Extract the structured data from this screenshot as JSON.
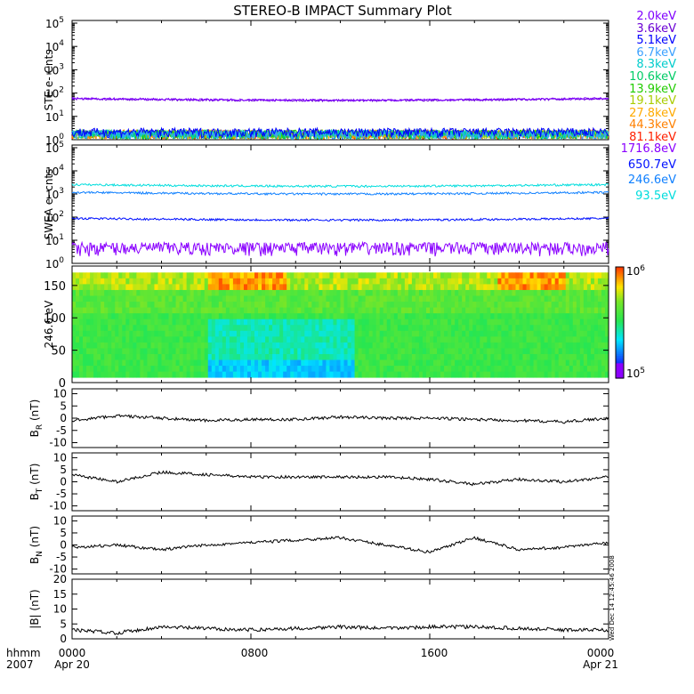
{
  "title": "STEREO-B IMPACT Summary Plot",
  "footer": {
    "left_line1": "hhmm",
    "left_line2": "2007",
    "tick_labels": [
      "0000",
      "0800",
      "1600",
      "0000"
    ],
    "date_start": "Apr 20",
    "date_end": "Apr 21",
    "timestamp": "Wed Dec 14 12:45:46 2008"
  },
  "colors": {
    "axis": "#000000",
    "ste_2": "#8000ff",
    "ste_3_6": "#6a00d4",
    "ste_5_1": "#0000ff",
    "ste_6_7": "#3aa0ff",
    "ste_8_3": "#00cccc",
    "ste_10_6": "#00cc66",
    "ste_13_9": "#22cc00",
    "ste_19_1": "#aacc00",
    "ste_27_8": "#ffaa00",
    "ste_44_3": "#ff8000",
    "ste_81_1": "#ff2000",
    "swea_1716": "#8a00ff",
    "swea_650": "#0010ff",
    "swea_246": "#1080ff",
    "swea_93": "#00dddd"
  },
  "chart_data": [
    {
      "type": "line",
      "panel": "STE",
      "ylabel": "STE e- Cnts",
      "yscale": "log",
      "ylim": [
        1,
        100000
      ],
      "ytick_labels": [
        "10^0",
        "10^1",
        "10^2",
        "10^3",
        "10^4",
        "10^5"
      ],
      "series": [
        {
          "name": "2.0keV",
          "color": "#8000ff",
          "level": 60
        },
        {
          "name": "3.6keV",
          "color": "#6a00d4",
          "level": 58
        },
        {
          "name": "5.1keV",
          "color": "#0000ff",
          "level": 1.2
        },
        {
          "name": "6.7keV",
          "color": "#3aa0ff",
          "level": 1
        },
        {
          "name": "8.3keV",
          "color": "#00cccc",
          "level": 1
        },
        {
          "name": "10.6keV",
          "color": "#00cc66",
          "level": 1
        },
        {
          "name": "13.9keV",
          "color": "#22cc00",
          "level": 1
        },
        {
          "name": "19.1keV",
          "color": "#aacc00",
          "level": 1
        },
        {
          "name": "27.8keV",
          "color": "#ffaa00",
          "level": 1
        },
        {
          "name": "44.3keV",
          "color": "#ff8000",
          "level": 1
        },
        {
          "name": "81.1keV",
          "color": "#ff2000",
          "level": 1
        }
      ]
    },
    {
      "type": "line",
      "panel": "SWEA",
      "ylabel": "SWEA e- cnts",
      "yscale": "log",
      "ylim": [
        1,
        100000
      ],
      "ytick_labels": [
        "10^0",
        "10^1",
        "10^2",
        "10^3",
        "10^4",
        "10^5"
      ],
      "series": [
        {
          "name": "1716.8eV",
          "color": "#8a00ff",
          "level": 2
        },
        {
          "name": "650.7eV",
          "color": "#0010ff",
          "level": 90
        },
        {
          "name": "246.6eV",
          "color": "#1080ff",
          "level": 1200
        },
        {
          "name": "93.5eV",
          "color": "#00dddd",
          "level": 2600
        }
      ]
    },
    {
      "type": "heatmap",
      "panel": "PAD",
      "ylabel": "246.6 eV",
      "ylim": [
        0,
        180
      ],
      "yticks": [
        0,
        50,
        100,
        150
      ],
      "colorbar": {
        "min_label": "10^5",
        "max_label": "10^6",
        "scale": "log"
      }
    },
    {
      "type": "line",
      "panel": "BR",
      "ylabel": "B_R (nT)",
      "ylim": [
        -12,
        12
      ],
      "yticks": [
        -10,
        -5,
        0,
        5,
        10
      ],
      "series": [
        {
          "x": [
            0,
            2,
            4,
            6,
            8,
            10,
            12,
            14,
            16,
            18,
            20,
            22,
            24
          ],
          "y": [
            -1,
            1,
            0,
            -1,
            -0.5,
            -0.5,
            0.5,
            0,
            0,
            -0.5,
            -1,
            -1.5,
            0
          ]
        }
      ]
    },
    {
      "type": "line",
      "panel": "BT",
      "ylabel": "B_T (nT)",
      "ylim": [
        -12,
        12
      ],
      "yticks": [
        -10,
        -5,
        0,
        5,
        10
      ],
      "series": [
        {
          "x": [
            0,
            2,
            4,
            6,
            8,
            10,
            12,
            14,
            16,
            18,
            20,
            22,
            24
          ],
          "y": [
            3,
            0,
            4,
            3,
            2,
            2,
            2,
            2,
            1,
            -1,
            1,
            0,
            2
          ]
        }
      ]
    },
    {
      "type": "line",
      "panel": "BN",
      "ylabel": "B_N (nT)",
      "ylim": [
        -12,
        12
      ],
      "yticks": [
        -10,
        -5,
        0,
        5,
        10
      ],
      "series": [
        {
          "x": [
            0,
            2,
            4,
            6,
            8,
            10,
            12,
            14,
            16,
            18,
            20,
            22,
            24
          ],
          "y": [
            -1,
            0,
            -2,
            0,
            1,
            2,
            3,
            0,
            -3,
            3,
            -2,
            -1,
            1
          ]
        }
      ]
    },
    {
      "type": "line",
      "panel": "BMAG",
      "ylabel": "|B| (nT)",
      "ylim": [
        0,
        20
      ],
      "yticks": [
        0,
        5,
        10,
        15,
        20
      ],
      "series": [
        {
          "x": [
            0,
            2,
            4,
            6,
            8,
            10,
            12,
            14,
            16,
            18,
            20,
            22,
            24
          ],
          "y": [
            3,
            2,
            4,
            3.5,
            3,
            3.5,
            4,
            3.5,
            4,
            4,
            3.5,
            3,
            3
          ]
        }
      ]
    }
  ]
}
